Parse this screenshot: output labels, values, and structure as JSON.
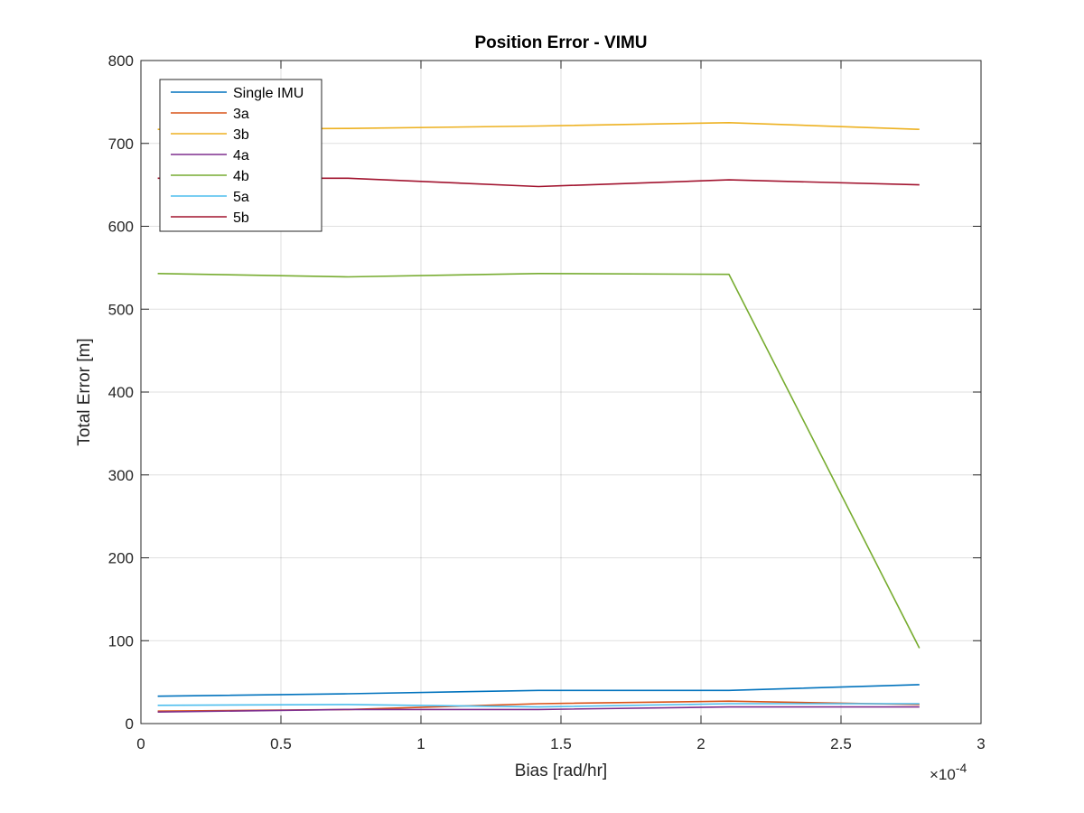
{
  "chart_data": {
    "type": "line",
    "title": "Position Error - VIMU",
    "xlabel": "Bias [rad/hr]",
    "ylabel": "Total Error [m]",
    "x_exponent_label": "×10",
    "x_exponent_power": "-4",
    "xlim": [
      0,
      3
    ],
    "ylim": [
      0,
      800
    ],
    "x_ticks": [
      0,
      0.5,
      1,
      1.5,
      2,
      2.5,
      3
    ],
    "x_tick_labels": [
      "0",
      "0.5",
      "1",
      "1.5",
      "2",
      "2.5",
      "3"
    ],
    "y_ticks": [
      0,
      100,
      200,
      300,
      400,
      500,
      600,
      700,
      800
    ],
    "y_tick_labels": [
      "0",
      "100",
      "200",
      "300",
      "400",
      "500",
      "600",
      "700",
      "800"
    ],
    "grid": true,
    "legend_position": "top-left",
    "x": [
      0.06,
      0.74,
      1.42,
      2.1,
      2.78
    ],
    "series": [
      {
        "name": "Single IMU",
        "color": "#0072BD",
        "values": [
          33,
          36,
          40,
          40,
          47
        ]
      },
      {
        "name": "3a",
        "color": "#D95319",
        "values": [
          15,
          17,
          24,
          27,
          23
        ]
      },
      {
        "name": "3b",
        "color": "#EDB120",
        "values": [
          717,
          718,
          721,
          725,
          717
        ]
      },
      {
        "name": "4a",
        "color": "#7E2F8E",
        "values": [
          14,
          17,
          17,
          20,
          20
        ]
      },
      {
        "name": "4b",
        "color": "#77AC30",
        "values": [
          543,
          539,
          543,
          542,
          91
        ]
      },
      {
        "name": "5a",
        "color": "#4DBEEE",
        "values": [
          22,
          23,
          20,
          24,
          24
        ]
      },
      {
        "name": "5b",
        "color": "#A2142F",
        "values": [
          658,
          658,
          648,
          656,
          650
        ]
      }
    ]
  }
}
